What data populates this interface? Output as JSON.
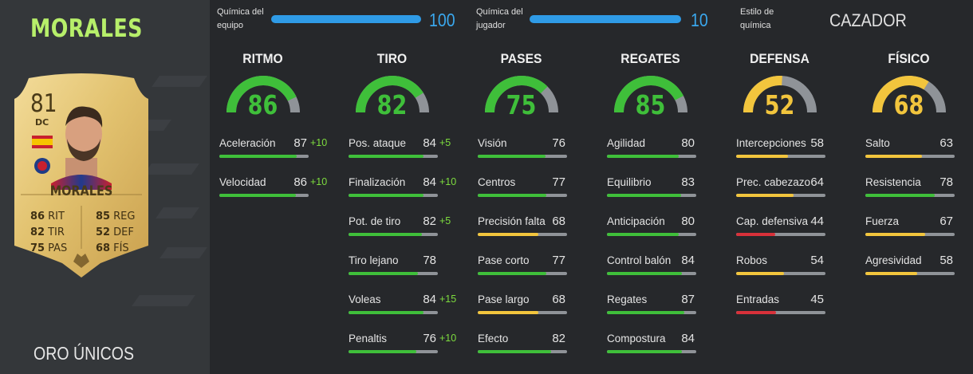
{
  "player": {
    "name": "MORALES",
    "card_type": "ORO ÚNICOS",
    "rating": "81",
    "position": "DC",
    "card_stats": [
      {
        "value": "86",
        "label": "RIT"
      },
      {
        "value": "85",
        "label": "REG"
      },
      {
        "value": "82",
        "label": "TIR"
      },
      {
        "value": "52",
        "label": "DEF"
      },
      {
        "value": "75",
        "label": "PAS"
      },
      {
        "value": "68",
        "label": "FÍS"
      }
    ]
  },
  "header": {
    "team_chem_label": "Química del\nequipo",
    "team_chem_value": "100",
    "team_chem_fraction": 1.0,
    "player_chem_label": "Química del\njugador",
    "player_chem_value": "10",
    "player_chem_fraction": 1.0,
    "style_label": "Estilo de\nquímica",
    "style_value": "CAZADOR"
  },
  "colors": {
    "green": "#3fbf3a",
    "yellow": "#f2c53d",
    "red": "#d8313a",
    "track": "#8f9398",
    "blue": "#2f9be6",
    "name_green": "#b7ef6a"
  },
  "categories": [
    {
      "title": "RITMO",
      "value": "86",
      "attributes": [
        {
          "name": "Aceleración",
          "value": "87",
          "boost": "+10"
        },
        {
          "name": "Velocidad",
          "value": "86",
          "boost": "+10"
        }
      ]
    },
    {
      "title": "TIRO",
      "value": "82",
      "attributes": [
        {
          "name": "Pos. ataque",
          "value": "84",
          "boost": "+5"
        },
        {
          "name": "Finalización",
          "value": "84",
          "boost": "+10"
        },
        {
          "name": "Pot. de tiro",
          "value": "82",
          "boost": "+5"
        },
        {
          "name": "Tiro lejano",
          "value": "78",
          "boost": ""
        },
        {
          "name": "Voleas",
          "value": "84",
          "boost": "+15"
        },
        {
          "name": "Penaltis",
          "value": "76",
          "boost": "+10"
        }
      ]
    },
    {
      "title": "PASES",
      "value": "75",
      "attributes": [
        {
          "name": "Visión",
          "value": "76",
          "boost": ""
        },
        {
          "name": "Centros",
          "value": "77",
          "boost": ""
        },
        {
          "name": "Precisión falta",
          "value": "68",
          "boost": ""
        },
        {
          "name": "Pase corto",
          "value": "77",
          "boost": ""
        },
        {
          "name": "Pase largo",
          "value": "68",
          "boost": ""
        },
        {
          "name": "Efecto",
          "value": "82",
          "boost": ""
        }
      ]
    },
    {
      "title": "REGATES",
      "value": "85",
      "attributes": [
        {
          "name": "Agilidad",
          "value": "80",
          "boost": ""
        },
        {
          "name": "Equilibrio",
          "value": "83",
          "boost": ""
        },
        {
          "name": "Anticipación",
          "value": "80",
          "boost": ""
        },
        {
          "name": "Control balón",
          "value": "84",
          "boost": ""
        },
        {
          "name": "Regates",
          "value": "87",
          "boost": ""
        },
        {
          "name": "Compostura",
          "value": "84",
          "boost": ""
        }
      ]
    },
    {
      "title": "DEFENSA",
      "value": "52",
      "attributes": [
        {
          "name": "Intercepciones",
          "value": "58",
          "boost": ""
        },
        {
          "name": "Prec. cabezazo",
          "value": "64",
          "boost": ""
        },
        {
          "name": "Cap. defensiva",
          "value": "44",
          "boost": ""
        },
        {
          "name": "Robos",
          "value": "54",
          "boost": ""
        },
        {
          "name": "Entradas",
          "value": "45",
          "boost": ""
        }
      ]
    },
    {
      "title": "FÍSICO",
      "value": "68",
      "attributes": [
        {
          "name": "Salto",
          "value": "63",
          "boost": ""
        },
        {
          "name": "Resistencia",
          "value": "78",
          "boost": ""
        },
        {
          "name": "Fuerza",
          "value": "67",
          "boost": ""
        },
        {
          "name": "Agresividad",
          "value": "58",
          "boost": ""
        }
      ]
    }
  ]
}
